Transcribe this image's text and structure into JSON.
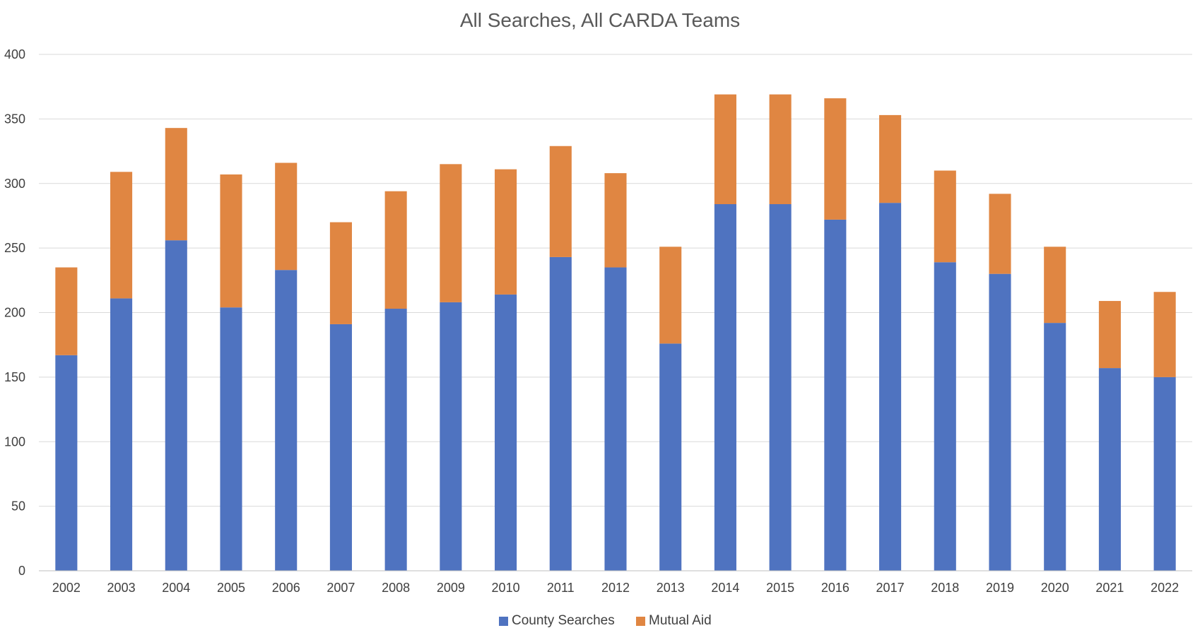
{
  "chart_data": {
    "type": "bar",
    "stacked": true,
    "title": "All Searches, All CARDA Teams",
    "xlabel": "",
    "ylabel": "",
    "ylim": [
      0,
      400
    ],
    "yticks": [
      0,
      50,
      100,
      150,
      200,
      250,
      300,
      350,
      400
    ],
    "grid": true,
    "legend_position": "bottom",
    "categories": [
      "2002",
      "2003",
      "2004",
      "2005",
      "2006",
      "2007",
      "2008",
      "2009",
      "2010",
      "2011",
      "2012",
      "2013",
      "2014",
      "2015",
      "2016",
      "2017",
      "2018",
      "2019",
      "2020",
      "2021",
      "2022"
    ],
    "series": [
      {
        "name": "County Searches",
        "color": "#4f73c0",
        "values": [
          167,
          211,
          256,
          204,
          233,
          191,
          203,
          208,
          214,
          243,
          235,
          176,
          284,
          284,
          272,
          285,
          239,
          230,
          192,
          157,
          150
        ]
      },
      {
        "name": "Mutual Aid",
        "color": "#e08642",
        "values": [
          68,
          98,
          87,
          103,
          83,
          79,
          91,
          107,
          97,
          86,
          73,
          75,
          85,
          85,
          94,
          68,
          71,
          62,
          59,
          52,
          66
        ]
      }
    ]
  }
}
